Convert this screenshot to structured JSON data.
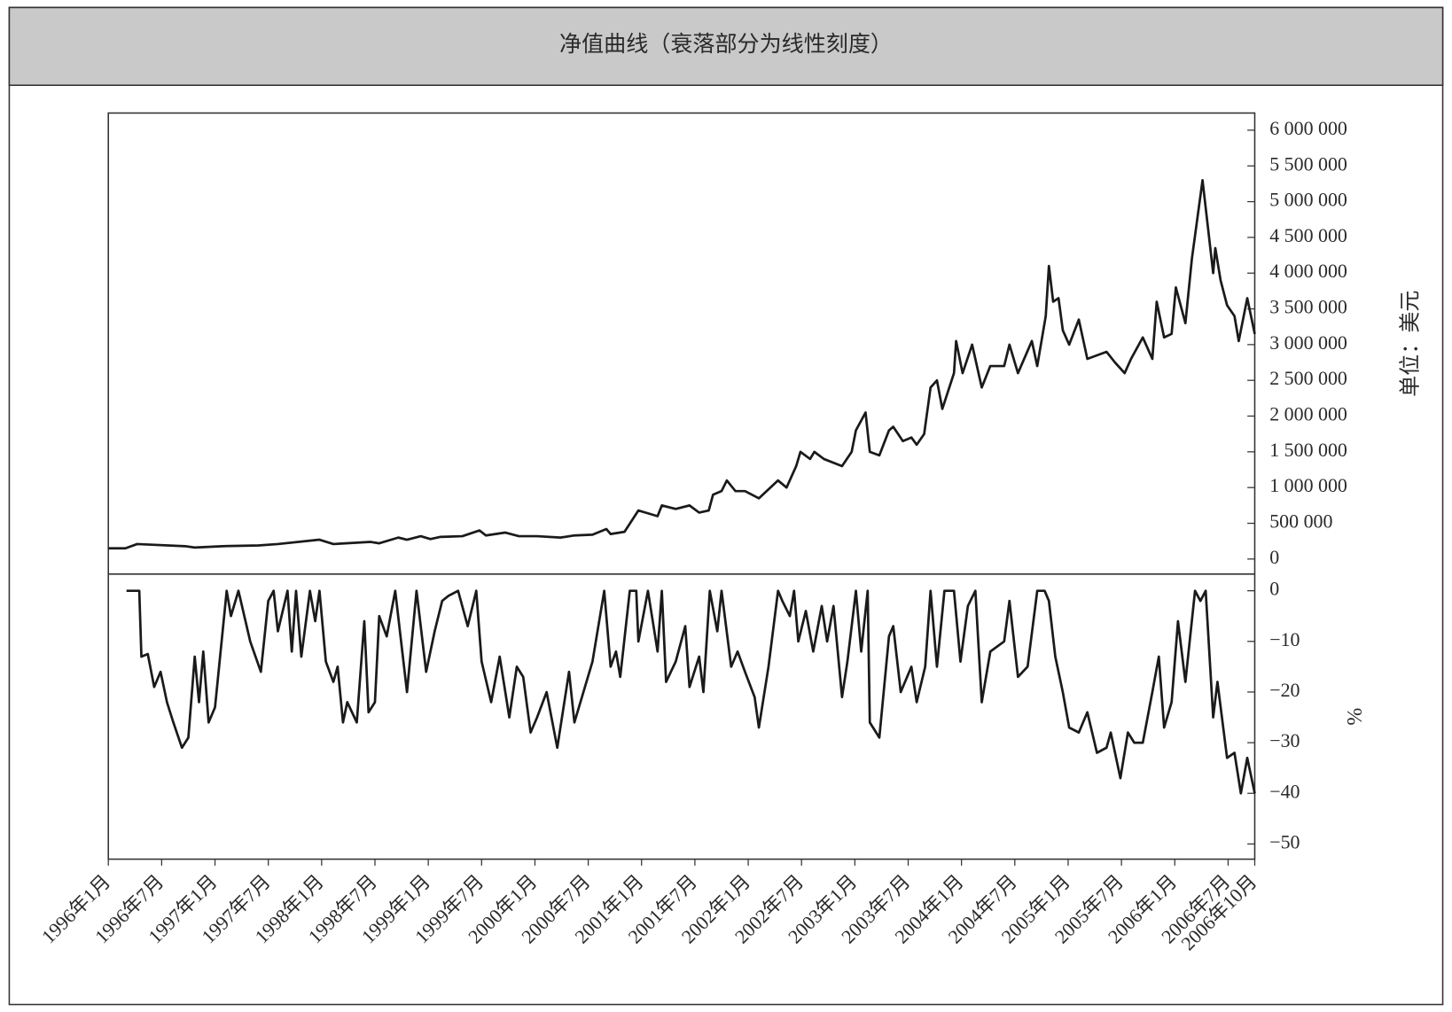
{
  "title": "净值曲线（衰落部分为线性刻度）",
  "chart_data": [
    {
      "type": "line",
      "ylabel": "单位：美元",
      "color": "#1a1a1a",
      "xlim": [
        1996,
        2006.75
      ],
      "ylim": [
        -210000,
        6240000
      ],
      "yticks": [
        0,
        {
          "value": 500000,
          "label": "500 000"
        },
        {
          "value": 1000000,
          "label": "1 000 000"
        },
        {
          "value": 1500000,
          "label": "1 500 000"
        },
        {
          "value": 2000000,
          "label": "2 000 000"
        },
        {
          "value": 2500000,
          "label": "2 500 000"
        },
        {
          "value": 3000000,
          "label": "3 000 000"
        },
        {
          "value": 3500000,
          "label": "3 500 000"
        },
        {
          "value": 4000000,
          "label": "4 000 000"
        },
        {
          "value": 4500000,
          "label": "4 500 000"
        },
        {
          "value": 5000000,
          "label": "5 000 000"
        },
        {
          "value": 5500000,
          "label": "5 500 000"
        },
        {
          "value": 6000000,
          "label": "6 000 000"
        }
      ],
      "x": [
        1996,
        1996.16,
        1996.27,
        1996.72,
        1996.81,
        1997.07,
        1997.41,
        1997.59,
        1997.98,
        1998.11,
        1998.46,
        1998.54,
        1998.72,
        1998.8,
        1998.93,
        1999.02,
        1999.11,
        1999.32,
        1999.48,
        1999.54,
        1999.72,
        1999.85,
        2000.02,
        2000.24,
        2000.37,
        2000.54,
        2000.67,
        2000.71,
        2000.84,
        2000.97,
        2001.06,
        2001.15,
        2001.19,
        2001.32,
        2001.45,
        2001.54,
        2001.63,
        2001.67,
        2001.75,
        2001.8,
        2001.88,
        2001.97,
        2002.1,
        2002.28,
        2002.36,
        2002.45,
        2002.49,
        2002.58,
        2002.62,
        2002.71,
        2002.88,
        2002.97,
        2003.01,
        2003.1,
        2003.14,
        2003.23,
        2003.32,
        2003.36,
        2003.45,
        2003.53,
        2003.58,
        2003.65,
        2003.71,
        2003.77,
        2003.82,
        2003.93,
        2003.95,
        2004.01,
        2004.1,
        2004.19,
        2004.27,
        2004.4,
        2004.45,
        2004.53,
        2004.66,
        2004.71,
        2004.79,
        2004.82,
        2004.86,
        2004.91,
        2004.95,
        2005.01,
        2005.1,
        2005.18,
        2005.36,
        2005.44,
        2005.53,
        2005.59,
        2005.7,
        2005.79,
        2005.83,
        2005.9,
        2005.97,
        2006.01,
        2006.1,
        2006.16,
        2006.26,
        2006.36,
        2006.38,
        2006.43,
        2006.49,
        2006.56,
        2006.6,
        2006.68,
        2006.75
      ],
      "values": [
        150000,
        150000,
        210000,
        180000,
        160000,
        180000,
        190000,
        210000,
        270000,
        210000,
        240000,
        220000,
        300000,
        270000,
        320000,
        280000,
        310000,
        320000,
        400000,
        330000,
        370000,
        320000,
        320000,
        300000,
        330000,
        340000,
        420000,
        350000,
        380000,
        680000,
        640000,
        600000,
        750000,
        700000,
        750000,
        650000,
        680000,
        900000,
        950000,
        1100000,
        950000,
        950000,
        850000,
        1100000,
        1000000,
        1300000,
        1500000,
        1400000,
        1500000,
        1400000,
        1300000,
        1500000,
        1800000,
        2050000,
        1500000,
        1450000,
        1800000,
        1850000,
        1650000,
        1700000,
        1600000,
        1750000,
        2400000,
        2500000,
        2100000,
        2600000,
        3050000,
        2600000,
        3000000,
        2400000,
        2700000,
        2700000,
        3000000,
        2600000,
        3050000,
        2700000,
        3400000,
        4100000,
        3600000,
        3650000,
        3200000,
        3000000,
        3350000,
        2800000,
        2900000,
        2750000,
        2600000,
        2800000,
        3100000,
        2800000,
        3600000,
        3100000,
        3150000,
        3800000,
        3300000,
        4200000,
        5300000,
        4000000,
        4350000,
        3900000,
        3550000,
        3400000,
        3050000,
        3650000,
        3150000
      ]
    },
    {
      "type": "line",
      "ylabel": "%",
      "color": "#1a1a1a",
      "xlim": [
        1996,
        2006.75
      ],
      "ylim": [
        -53,
        3.3
      ],
      "yticks": [
        0,
        {
          "value": -10,
          "label": "−10"
        },
        {
          "value": -20,
          "label": "−20"
        },
        {
          "value": -30,
          "label": "−30"
        },
        {
          "value": -40,
          "label": "−40"
        },
        {
          "value": -50,
          "label": "−50"
        }
      ],
      "xticks": [
        {
          "value": 1996,
          "label": "1996年1月"
        },
        {
          "value": 1996.5,
          "label": "1996年7月"
        },
        {
          "value": 1997,
          "label": "1997年1月"
        },
        {
          "value": 1997.5,
          "label": "1997年7月"
        },
        {
          "value": 1998,
          "label": "1998年1月"
        },
        {
          "value": 1998.5,
          "label": "1998年7月"
        },
        {
          "value": 1999,
          "label": "1999年1月"
        },
        {
          "value": 1999.5,
          "label": "1999年7月"
        },
        {
          "value": 2000,
          "label": "2000年1月"
        },
        {
          "value": 2000.5,
          "label": "2000年7月"
        },
        {
          "value": 2001,
          "label": "2001年1月"
        },
        {
          "value": 2001.5,
          "label": "2001年7月"
        },
        {
          "value": 2002,
          "label": "2002年1月"
        },
        {
          "value": 2002.5,
          "label": "2002年7月"
        },
        {
          "value": 2003,
          "label": "2003年1月"
        },
        {
          "value": 2003.5,
          "label": "2003年7月"
        },
        {
          "value": 2004,
          "label": "2004年1月"
        },
        {
          "value": 2004.5,
          "label": "2004年7月"
        },
        {
          "value": 2005,
          "label": "2005年1月"
        },
        {
          "value": 2005.5,
          "label": "2005年7月"
        },
        {
          "value": 2006,
          "label": "2006年1月"
        },
        {
          "value": 2006.5,
          "label": "2006年7月"
        },
        {
          "value": 2006.75,
          "label": "2006年10月"
        }
      ],
      "x": [
        1996.17,
        1996.29,
        1996.31,
        1996.37,
        1996.43,
        1996.49,
        1996.55,
        1996.61,
        1996.69,
        1996.75,
        1996.81,
        1996.85,
        1996.89,
        1996.94,
        1997,
        1997.11,
        1997.15,
        1997.22,
        1997.33,
        1997.43,
        1997.5,
        1997.55,
        1997.59,
        1997.68,
        1997.72,
        1997.76,
        1997.81,
        1997.89,
        1997.94,
        1997.98,
        1998.04,
        1998.11,
        1998.15,
        1998.2,
        1998.24,
        1998.33,
        1998.4,
        1998.44,
        1998.5,
        1998.54,
        1998.61,
        1998.69,
        1998.8,
        1998.89,
        1998.98,
        1999.06,
        1999.13,
        1999.19,
        1999.28,
        1999.37,
        1999.45,
        1999.5,
        1999.59,
        1999.67,
        1999.76,
        1999.83,
        1999.89,
        1999.96,
        2000.02,
        2000.11,
        2000.21,
        2000.32,
        2000.37,
        2000.54,
        2000.65,
        2000.71,
        2000.76,
        2000.8,
        2000.89,
        2000.95,
        2000.97,
        2001.06,
        2001.15,
        2001.19,
        2001.23,
        2001.32,
        2001.41,
        2001.45,
        2001.54,
        2001.58,
        2001.64,
        2001.71,
        2001.75,
        2001.84,
        2001.9,
        2001.97,
        2002.06,
        2002.1,
        2002.19,
        2002.28,
        2002.32,
        2002.39,
        2002.43,
        2002.47,
        2002.54,
        2002.61,
        2002.69,
        2002.74,
        2002.8,
        2002.88,
        2002.93,
        2003.01,
        2003.06,
        2003.12,
        2003.14,
        2003.23,
        2003.32,
        2003.36,
        2003.43,
        2003.53,
        2003.58,
        2003.66,
        2003.71,
        2003.77,
        2003.84,
        2003.93,
        2003.99,
        2004.06,
        2004.13,
        2004.19,
        2004.27,
        2004.4,
        2004.45,
        2004.53,
        2004.62,
        2004.71,
        2004.78,
        2004.82,
        2004.88,
        2004.95,
        2005.01,
        2005.1,
        2005.18,
        2005.27,
        2005.36,
        2005.4,
        2005.44,
        2005.49,
        2005.56,
        2005.62,
        2005.7,
        2005.79,
        2005.85,
        2005.9,
        2005.97,
        2006.03,
        2006.1,
        2006.19,
        2006.24,
        2006.29,
        2006.36,
        2006.4,
        2006.49,
        2006.56,
        2006.62,
        2006.68,
        2006.75
      ],
      "values": [
        0,
        0,
        -13,
        -12.5,
        -19,
        -16,
        -22,
        -26,
        -31,
        -29,
        -13,
        -22,
        -12,
        -26,
        -23,
        0,
        -5,
        0,
        -10,
        -16,
        -2,
        0,
        -8,
        0,
        -12,
        0,
        -13,
        0,
        -6,
        0,
        -14,
        -18,
        -15,
        -26,
        -22,
        -26,
        -6,
        -24,
        -22,
        -5,
        -9,
        0,
        -20,
        0,
        -16,
        -8,
        -2,
        -1,
        0,
        -7,
        0,
        -14,
        -22,
        -13,
        -25,
        -15,
        -17,
        -28,
        -25,
        -20,
        -31,
        -16,
        -26,
        -14,
        0,
        -15,
        -12,
        -17,
        0,
        0,
        -10,
        0,
        -12,
        0,
        -18,
        -14,
        -7,
        -19,
        -13,
        -20,
        0,
        -8,
        0,
        -15,
        -12,
        -16,
        -21,
        -27,
        -15,
        0,
        -2,
        -5,
        0,
        -10,
        -4,
        -12,
        -3,
        -10,
        -3,
        -21,
        -14,
        0,
        -12,
        0,
        -26,
        -29,
        -9,
        -7,
        -20,
        -15,
        -22,
        -15,
        0,
        -15,
        0,
        0,
        -14,
        -3,
        0,
        -22,
        -12,
        -10,
        -2,
        -17,
        -15,
        0,
        0,
        -2,
        -13,
        -20,
        -27,
        -28,
        -24,
        -32,
        -31,
        -28,
        -32,
        -37,
        -28,
        -30,
        -30,
        -20,
        -13,
        -27,
        -22,
        -6,
        -18,
        0,
        -2,
        0,
        -25,
        -18,
        -33,
        -32,
        -40,
        -33,
        -40
      ]
    }
  ]
}
